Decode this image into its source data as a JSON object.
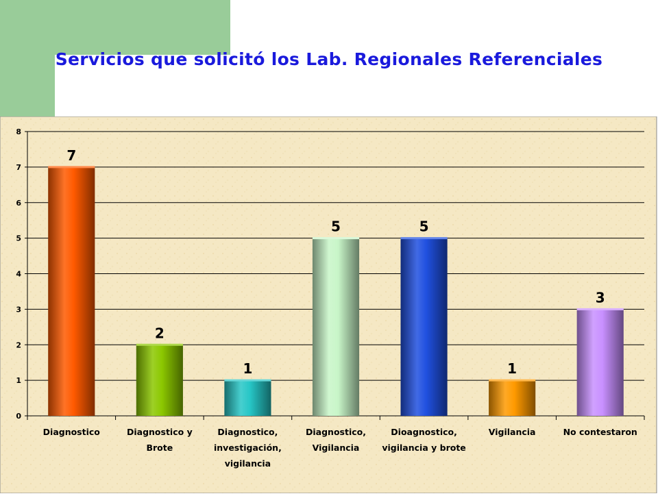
{
  "title": "Servicios que solicitó los Lab. Regionales Referenciales",
  "colors": {
    "accent_left_bar": "#99cc99",
    "title": "#1a1adc",
    "plot_background": "#f5e8c4"
  },
  "chart_data": {
    "type": "bar",
    "title": "Servicios que solicitó los Lab. Regionales Referenciales",
    "categories": [
      [
        "Diagnostico"
      ],
      [
        "Diagnostico y",
        "Brote"
      ],
      [
        "Diagnostico,",
        "investigación,",
        "vigilancia"
      ],
      [
        "Diagnostico,",
        "Vigilancia"
      ],
      [
        "Dioagnostico,",
        "vigilancia y brote"
      ],
      [
        "Vigilancia"
      ],
      [
        "No contestaron"
      ]
    ],
    "values": [
      7,
      2,
      1,
      5,
      5,
      1,
      3
    ],
    "data_labels": [
      "7",
      "2",
      "1",
      "5",
      "5",
      "1",
      "3"
    ],
    "bar_colors": [
      "#ff5a00",
      "#8cc800",
      "#26c6c6",
      "#c8f5c8",
      "#2050e0",
      "#ff9a00",
      "#c890ff"
    ],
    "ylim": [
      0,
      8
    ],
    "yticks": [
      "0",
      "1",
      "2",
      "3",
      "4",
      "5",
      "6",
      "7",
      "8"
    ],
    "grid": true,
    "legend": "none"
  }
}
